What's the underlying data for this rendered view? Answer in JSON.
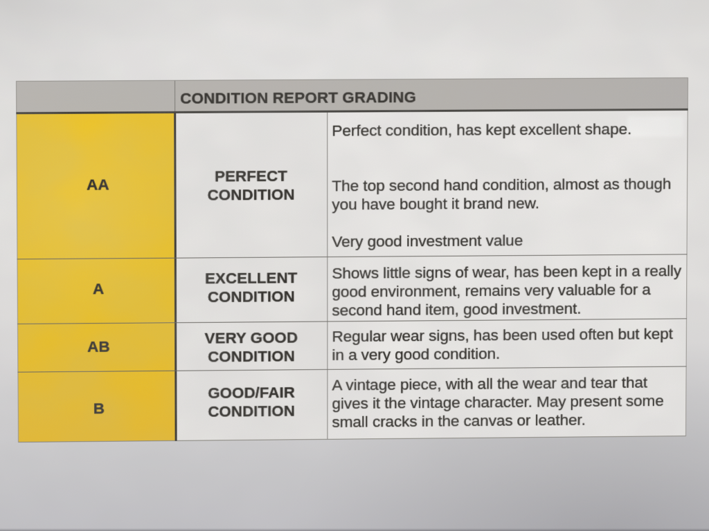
{
  "photo": {
    "table": {
      "header_title": "CONDITION REPORT GRADING",
      "rows": [
        {
          "grade": "AA",
          "condition_lines": [
            "PERFECT",
            "CONDITION"
          ],
          "description_paragraphs": [
            [
              "Perfect condition, has kept excellent shape."
            ],
            [
              "The top second hand condition, almost as though",
              "you have bought it brand new."
            ],
            [
              "Very good investment value"
            ]
          ]
        },
        {
          "grade": "A",
          "condition_lines": [
            "EXCELLENT",
            "CONDITION"
          ],
          "description_paragraphs": [
            [
              "Shows little signs of wear, has been kept in a really",
              "good environment, remains very valuable for a",
              "second hand item, good investment."
            ]
          ]
        },
        {
          "grade": "AB",
          "condition_lines": [
            "VERY GOOD",
            "CONDITION"
          ],
          "description_paragraphs": [
            [
              "Regular wear signs, has been used often but kept",
              "in a very good condition."
            ]
          ]
        },
        {
          "grade": "B",
          "condition_lines": [
            "GOOD/FAIR",
            "CONDITION"
          ],
          "description_paragraphs": [
            [
              "A vintage piece, with all the wear and tear that",
              "gives it the vintage character. May present some",
              "small cracks in the canvas or leather."
            ]
          ]
        }
      ],
      "colors": {
        "grade_column_fill": "#eec018",
        "header_bar_fill": "#b5b1ab",
        "cell_fill": "#e9e7e4",
        "ink": "#2b2823",
        "paper_bottom_shadow": "#9d9ca2"
      }
    }
  }
}
